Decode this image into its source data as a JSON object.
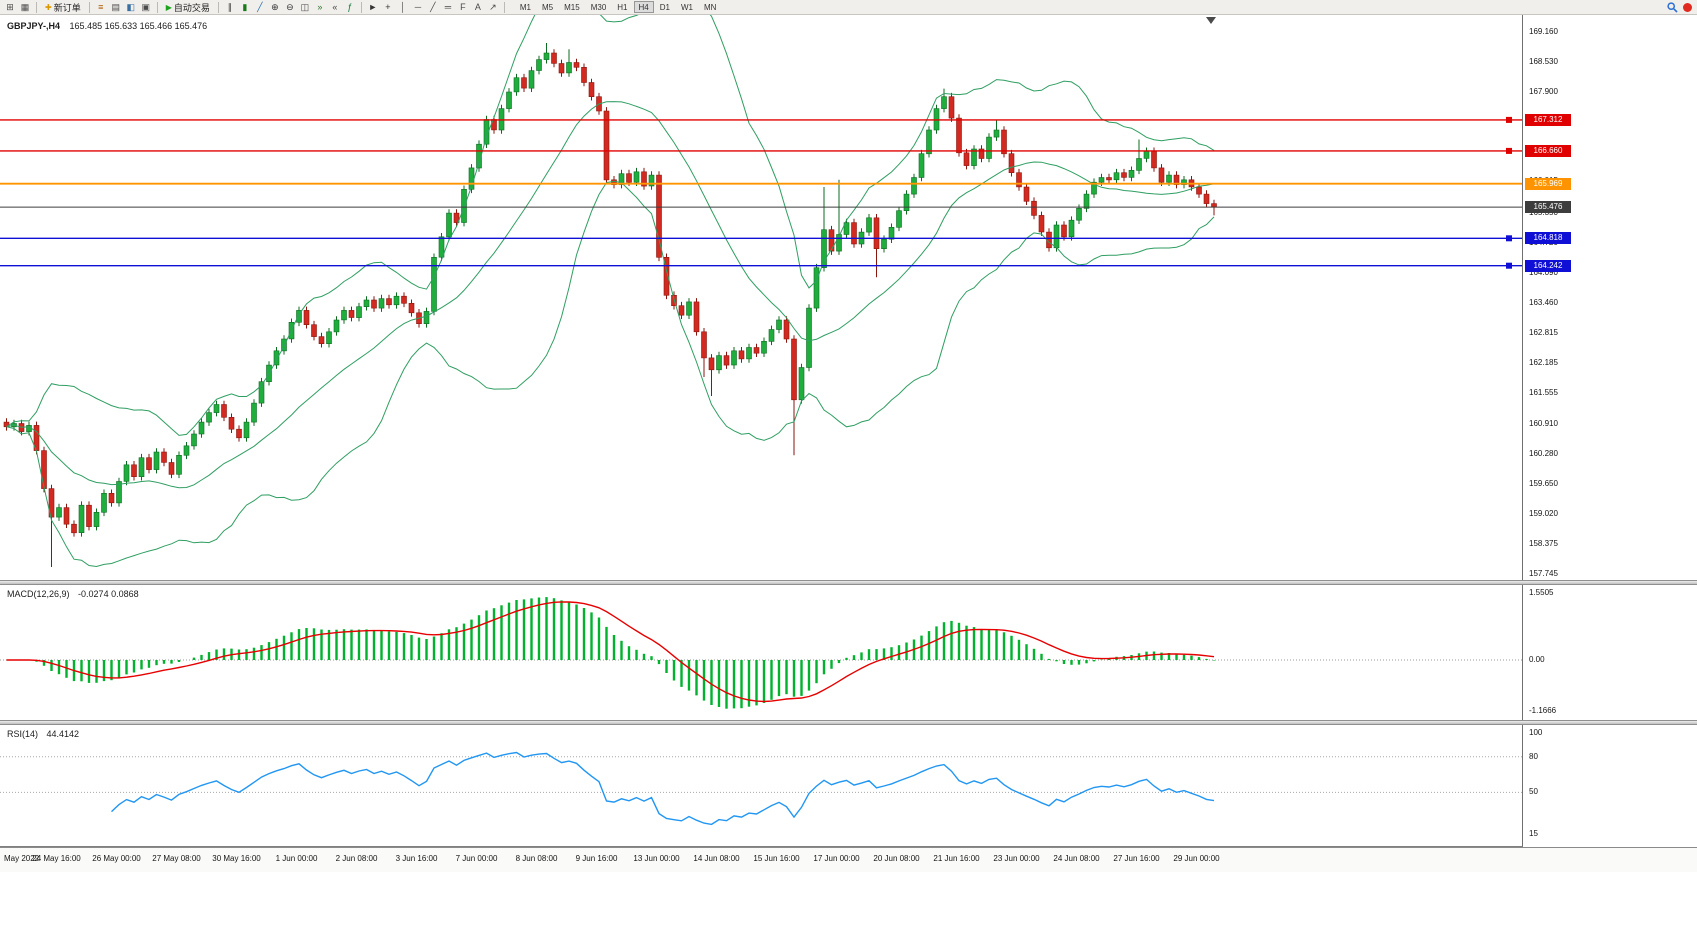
{
  "toolbar": {
    "new_order_label": "新订单",
    "autotrading_label": "自动交易",
    "timeframes": [
      "M1",
      "M5",
      "M15",
      "M30",
      "H1",
      "H4",
      "D1",
      "W1",
      "MN"
    ],
    "active_timeframe": "H4",
    "icon_groups": {
      "file": [
        {
          "name": "new-chart-icon",
          "glyph": "⊞",
          "color": "#4a4a4a"
        },
        {
          "name": "profiles-icon",
          "glyph": "▦",
          "color": "#4a4a4a"
        }
      ],
      "windows": [
        {
          "name": "market-watch-icon",
          "glyph": "≡",
          "color": "#b05a00"
        },
        {
          "name": "data-window-icon",
          "glyph": "▤",
          "color": "#4a4a4a"
        },
        {
          "name": "navigator-icon",
          "glyph": "◧",
          "color": "#3b6fa0"
        },
        {
          "name": "terminal-icon",
          "glyph": "▣",
          "color": "#4a4a4a"
        }
      ],
      "chart": [
        {
          "name": "bar-chart-icon",
          "glyph": "∥",
          "color": "#3a3a3a"
        },
        {
          "name": "candlestick-chart-icon",
          "glyph": "▮",
          "color": "#1a7a1a"
        },
        {
          "name": "line-chart-icon",
          "glyph": "╱",
          "color": "#2a6fb0"
        },
        {
          "name": "zoom-in-icon",
          "glyph": "⊕",
          "color": "#333333"
        },
        {
          "name": "zoom-out-icon",
          "glyph": "⊖",
          "color": "#333333"
        },
        {
          "name": "tile-windows-icon",
          "glyph": "◫",
          "color": "#4a4a4a"
        },
        {
          "name": "auto-scroll-icon",
          "glyph": "»",
          "color": "#2a7a2a"
        },
        {
          "name": "chart-shift-icon",
          "glyph": "«",
          "color": "#4a4a4a"
        },
        {
          "name": "indicators-icon",
          "glyph": "ƒ",
          "color": "#0c7a3c"
        }
      ],
      "tools": [
        {
          "name": "cursor-icon",
          "glyph": "►",
          "color": "#333333"
        },
        {
          "name": "crosshair-icon",
          "glyph": "+",
          "color": "#333333"
        },
        {
          "name": "vertical-line-icon",
          "glyph": "│",
          "color": "#4a4a4a"
        },
        {
          "name": "horizontal-line-icon",
          "glyph": "─",
          "color": "#4a4a4a"
        },
        {
          "name": "trendline-icon",
          "glyph": "╱",
          "color": "#4a4a4a"
        },
        {
          "name": "channel-icon",
          "glyph": "═",
          "color": "#4a4a4a"
        },
        {
          "name": "fibonacci-icon",
          "glyph": "F",
          "color": "#4a4a4a"
        },
        {
          "name": "text-icon",
          "glyph": "A",
          "color": "#4a4a4a"
        },
        {
          "name": "arrow-tool-icon",
          "glyph": "↗",
          "color": "#4a4a4a"
        }
      ]
    }
  },
  "chart_data": {
    "type": "candlestick",
    "symbol": "GBPJPY-",
    "period": "H4",
    "title": "GBPJPY-,H4",
    "ohlc_text": "165.485 165.633 165.466 165.476",
    "y_axis_ticks": [
      "169.160",
      "168.530",
      "167.900",
      "167.270",
      "166.645",
      "166.015",
      "165.350",
      "164.720",
      "164.090",
      "163.460",
      "162.815",
      "162.185",
      "161.555",
      "160.910",
      "160.280",
      "159.650",
      "159.020",
      "158.375",
      "157.745"
    ],
    "horizontal_lines": [
      {
        "price": 167.312,
        "label": "167.312",
        "color": "#e00000",
        "width": 1.4,
        "marker": true,
        "role": "resistance"
      },
      {
        "price": 166.66,
        "label": "166.660",
        "color": "#e00000",
        "width": 1.4,
        "marker": true,
        "role": "resistance"
      },
      {
        "price": 165.969,
        "label": "165.969",
        "color": "#ff9400",
        "width": 1.8,
        "marker": false,
        "role": "pivot"
      },
      {
        "price": 165.476,
        "label": "165.476",
        "color": "#3d3d3d",
        "width": 1.0,
        "marker": false,
        "role": "current-price"
      },
      {
        "price": 164.818,
        "label": "164.818",
        "color": "#0f0fd6",
        "width": 1.4,
        "marker": true,
        "role": "support"
      },
      {
        "price": 164.242,
        "label": "164.242",
        "color": "#0f0fd6",
        "width": 1.4,
        "marker": true,
        "role": "support"
      }
    ],
    "bollinger": {
      "period": 20,
      "deviation": 2,
      "color": "#2f9e62"
    },
    "candles": {
      "first_open": 160.95,
      "default_wick": 0.08,
      "closes": [
        160.85,
        160.92,
        160.75,
        160.88,
        160.35,
        159.55,
        158.95,
        159.15,
        158.8,
        158.62,
        159.2,
        158.75,
        159.05,
        159.45,
        159.25,
        159.7,
        160.05,
        159.8,
        160.2,
        159.95,
        160.32,
        160.1,
        159.85,
        160.25,
        160.45,
        160.7,
        160.95,
        161.15,
        161.32,
        161.05,
        160.8,
        160.62,
        160.95,
        161.35,
        161.8,
        162.15,
        162.45,
        162.7,
        163.05,
        163.3,
        163.0,
        162.75,
        162.6,
        162.85,
        163.1,
        163.3,
        163.15,
        163.38,
        163.52,
        163.35,
        163.55,
        163.42,
        163.6,
        163.45,
        163.25,
        163.02,
        163.28,
        164.42,
        164.85,
        165.35,
        165.15,
        165.85,
        166.3,
        166.8,
        167.32,
        167.1,
        167.55,
        167.9,
        168.2,
        167.98,
        168.35,
        168.58,
        168.72,
        168.5,
        168.3,
        168.52,
        168.42,
        168.1,
        167.8,
        167.5,
        166.05,
        165.95,
        166.18,
        166.0,
        166.22,
        165.92,
        166.15,
        164.42,
        163.62,
        163.4,
        163.2,
        163.48,
        162.85,
        162.3,
        162.05,
        162.35,
        162.15,
        162.45,
        162.28,
        162.52,
        162.4,
        162.65,
        162.9,
        163.1,
        162.7,
        161.42,
        162.1,
        163.35,
        164.2,
        165.0,
        164.55,
        164.9,
        165.15,
        164.7,
        164.95,
        165.25,
        164.6,
        164.8,
        165.05,
        165.4,
        165.75,
        166.1,
        166.6,
        167.1,
        167.55,
        167.8,
        167.35,
        166.62,
        166.35,
        166.7,
        166.5,
        166.95,
        167.1,
        166.6,
        166.2,
        165.9,
        165.6,
        165.3,
        164.95,
        164.62,
        165.1,
        164.85,
        165.2,
        165.45,
        165.75,
        166.0,
        166.1,
        166.05,
        166.2,
        166.1,
        166.25,
        166.5,
        166.65,
        166.3,
        166.0,
        166.15,
        165.95,
        166.05,
        165.9,
        165.75,
        165.55,
        165.48
      ],
      "wick_overrides": {
        "6": {
          "low": 157.9
        },
        "72": {
          "high": 168.93
        },
        "75": {
          "high": 168.8
        },
        "93": {
          "low": 161.9
        },
        "94": {
          "low": 161.5
        },
        "105": {
          "low": 160.25
        },
        "109": {
          "high": 165.9
        },
        "111": {
          "high": 166.05
        },
        "116": {
          "low": 164.0
        },
        "125": {
          "high": 167.97
        },
        "132": {
          "high": 167.3
        },
        "151": {
          "high": 166.9
        },
        "161": {
          "low": 165.3
        }
      }
    },
    "x_axis_labels": [
      {
        "i": 0,
        "label": "May 2022"
      },
      {
        "i": 7,
        "label": "24 May 16:00"
      },
      {
        "i": 15,
        "label": "26 May 00:00"
      },
      {
        "i": 23,
        "label": "27 May 08:00"
      },
      {
        "i": 31,
        "label": "30 May 16:00"
      },
      {
        "i": 39,
        "label": "1 Jun 00:00"
      },
      {
        "i": 47,
        "label": "2 Jun 08:00"
      },
      {
        "i": 55,
        "label": "3 Jun 16:00"
      },
      {
        "i": 63,
        "label": "7 Jun 00:00"
      },
      {
        "i": 71,
        "label": "8 Jun 08:00"
      },
      {
        "i": 79,
        "label": "9 Jun 16:00"
      },
      {
        "i": 87,
        "label": "13 Jun 00:00"
      },
      {
        "i": 95,
        "label": "14 Jun 08:00"
      },
      {
        "i": 103,
        "label": "15 Jun 16:00"
      },
      {
        "i": 111,
        "label": "17 Jun 00:00"
      },
      {
        "i": 119,
        "label": "20 Jun 08:00"
      },
      {
        "i": 127,
        "label": "21 Jun 16:00"
      },
      {
        "i": 135,
        "label": "23 Jun 00:00"
      },
      {
        "i": 143,
        "label": "24 Jun 08:00"
      },
      {
        "i": 151,
        "label": "27 Jun 16:00"
      },
      {
        "i": 159,
        "label": "29 Jun 00:00"
      }
    ],
    "indicators": {
      "macd": {
        "label_full": "MACD(12,26,9)",
        "values_text": "-0.0274 0.0868",
        "params": [
          12,
          26,
          9
        ],
        "histogram_color": "#00b22d",
        "signal_color": "#e60000",
        "axis": [
          {
            "v": 1.5505,
            "t": "1.5505"
          },
          {
            "v": 0,
            "t": "0.00"
          },
          {
            "v": -1.1666,
            "t": "-1.1666"
          }
        ]
      },
      "rsi": {
        "label_full": "RSI(14)",
        "value_text": "44.4142",
        "params": [
          14
        ],
        "line_color": "#2196f3",
        "axis": [
          {
            "v": 100,
            "t": "100"
          },
          {
            "v": 80,
            "t": "80"
          },
          {
            "v": 50,
            "t": "50"
          },
          {
            "v": 15,
            "t": "15"
          }
        ],
        "levels": [
          80,
          50
        ]
      }
    }
  }
}
